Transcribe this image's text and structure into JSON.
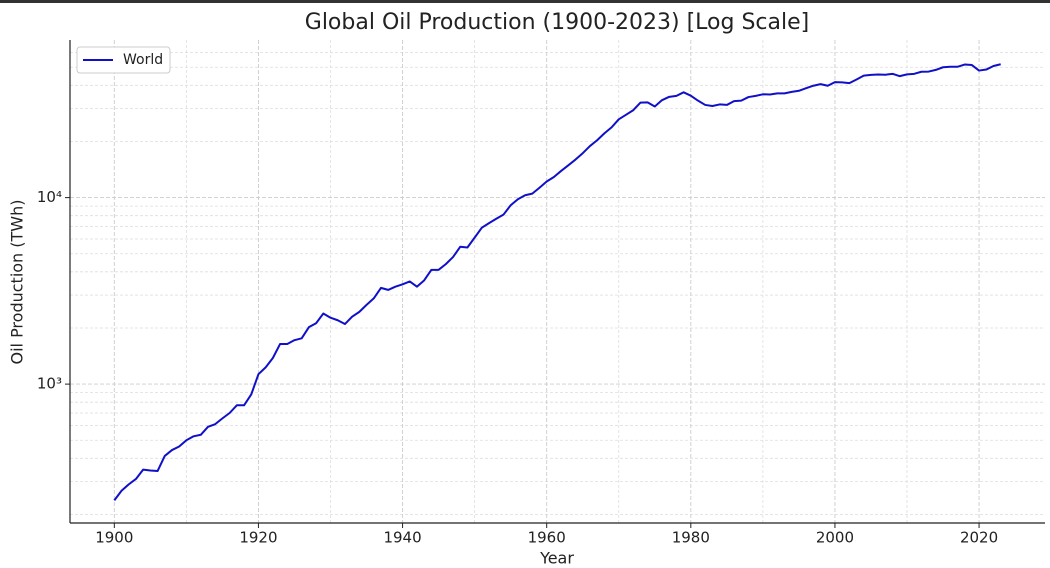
{
  "chart_data": {
    "type": "line",
    "title": "Global Oil Production (1900-2023) [Log Scale]",
    "xlabel": "Year",
    "ylabel": "Oil Production (TWh)",
    "log_y": true,
    "grid": true,
    "legend": "upper left",
    "xlim": [
      1893.85,
      2029.15
    ],
    "ylim": [
      180,
      70000
    ],
    "xticks": [
      1900,
      1920,
      1940,
      1960,
      1980,
      2000,
      2020
    ],
    "xminorticks": [
      1910,
      1930,
      1950,
      1970,
      1990,
      2010
    ],
    "yticks": [
      {
        "value": 1000,
        "label": "10³"
      },
      {
        "value": 10000,
        "label": "10⁴"
      }
    ],
    "yminorticks": [
      200,
      300,
      400,
      500,
      600,
      700,
      800,
      900,
      2000,
      3000,
      4000,
      5000,
      6000,
      7000,
      8000,
      9000,
      20000,
      30000,
      40000,
      50000,
      60000
    ],
    "x": [
      1900,
      1901,
      1902,
      1903,
      1904,
      1905,
      1906,
      1907,
      1908,
      1909,
      1910,
      1911,
      1912,
      1913,
      1914,
      1915,
      1916,
      1917,
      1918,
      1919,
      1920,
      1921,
      1922,
      1923,
      1924,
      1925,
      1926,
      1927,
      1928,
      1929,
      1930,
      1931,
      1932,
      1933,
      1934,
      1935,
      1936,
      1937,
      1938,
      1939,
      1940,
      1941,
      1942,
      1943,
      1944,
      1945,
      1946,
      1947,
      1948,
      1949,
      1950,
      1951,
      1952,
      1953,
      1954,
      1955,
      1956,
      1957,
      1958,
      1959,
      1960,
      1961,
      1962,
      1963,
      1964,
      1965,
      1966,
      1967,
      1968,
      1969,
      1970,
      1971,
      1972,
      1973,
      1974,
      1975,
      1976,
      1977,
      1978,
      1979,
      1980,
      1981,
      1982,
      1983,
      1984,
      1985,
      1986,
      1987,
      1988,
      1989,
      1990,
      1991,
      1992,
      1993,
      1994,
      1995,
      1996,
      1997,
      1998,
      1999,
      2000,
      2001,
      2002,
      2003,
      2004,
      2005,
      2006,
      2007,
      2008,
      2009,
      2010,
      2011,
      2012,
      2013,
      2014,
      2015,
      2016,
      2017,
      2018,
      2019,
      2020,
      2021,
      2022,
      2023
    ],
    "series": [
      {
        "name": "World",
        "color": "#1010c8",
        "values": [
          238,
          268,
          290,
          310,
          348,
          344,
          342,
          412,
          443,
          463,
          500,
          525,
          535,
          590,
          610,
          655,
          700,
          770,
          770,
          880,
          1130,
          1230,
          1380,
          1640,
          1640,
          1720,
          1760,
          2020,
          2120,
          2390,
          2270,
          2200,
          2100,
          2300,
          2440,
          2660,
          2880,
          3280,
          3200,
          3330,
          3430,
          3550,
          3330,
          3600,
          4100,
          4100,
          4400,
          4800,
          5450,
          5400,
          6100,
          6900,
          7300,
          7700,
          8100,
          9100,
          9800,
          10300,
          10500,
          11300,
          12200,
          12900,
          13900,
          14900,
          16000,
          17300,
          18900,
          20300,
          22100,
          23800,
          26300,
          27800,
          29400,
          32300,
          32400,
          30800,
          33300,
          34700,
          35100,
          36700,
          35200,
          33100,
          31400,
          31000,
          31600,
          31400,
          32900,
          33100,
          34600,
          35100,
          35800,
          35700,
          36200,
          36200,
          36900,
          37400,
          38600,
          39800,
          40600,
          39800,
          41600,
          41500,
          41100,
          43000,
          45100,
          45500,
          45700,
          45600,
          46100,
          44800,
          45800,
          46100,
          47300,
          47400,
          48400,
          50000,
          50300,
          50300,
          51700,
          51400,
          48000,
          48600,
          50800,
          51900
        ]
      }
    ]
  }
}
